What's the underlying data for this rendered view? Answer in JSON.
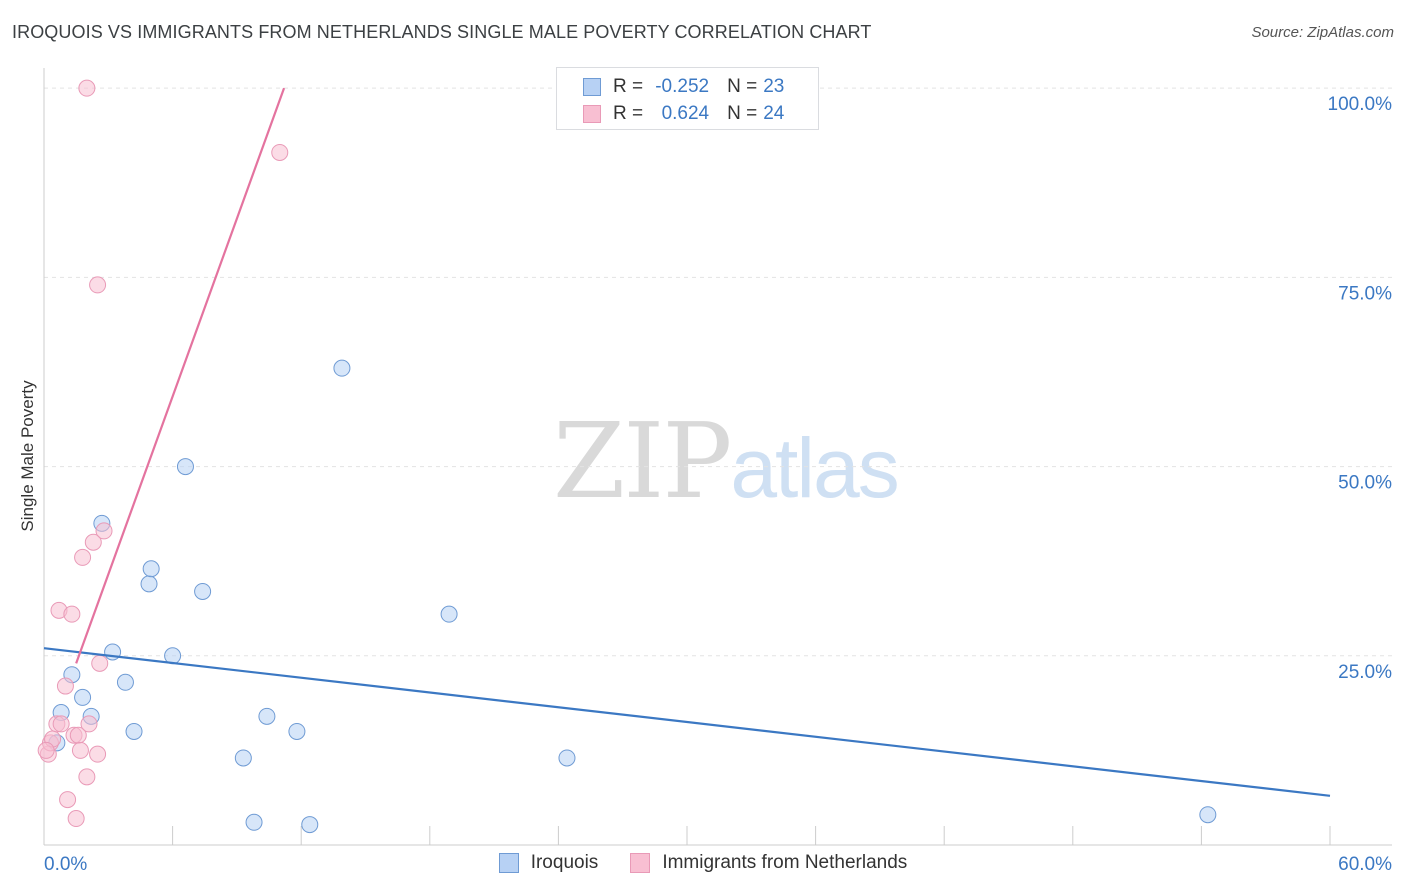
{
  "title": "IROQUOIS VS IMMIGRANTS FROM NETHERLANDS SINGLE MALE POVERTY CORRELATION CHART",
  "source": "Source: ZipAtlas.com",
  "watermark": {
    "zip": "ZIP",
    "atlas": "atlas"
  },
  "colors": {
    "blue": "#3b78c3",
    "blue_fill": "#b7d1f4",
    "pink": "#e4739f",
    "pink_fill": "#f8bfd2",
    "grid": "#e3e3e3"
  },
  "legend": {
    "rows": [
      {
        "r_label": "R =",
        "r_value": "-0.252",
        "n_label": "N =",
        "n_value": "23"
      },
      {
        "r_label": "R =",
        "r_value": "0.624",
        "n_label": "N =",
        "n_value": "24"
      }
    ]
  },
  "bottom_legend": [
    "Iroquois",
    "Immigrants from Netherlands"
  ],
  "chart_data": {
    "type": "scatter",
    "title": "IROQUOIS VS IMMIGRANTS FROM NETHERLANDS SINGLE MALE POVERTY CORRELATION CHART",
    "xlabel": "",
    "ylabel": "Single Male Poverty",
    "xlim": [
      0,
      60
    ],
    "ylim": [
      0,
      102
    ],
    "x_tick_labels": {
      "min": "0.0%",
      "max": "60.0%"
    },
    "y_ticks": [
      {
        "value": 25,
        "label": "25.0%"
      },
      {
        "value": 50,
        "label": "50.0%"
      },
      {
        "value": 75,
        "label": "75.0%"
      },
      {
        "value": 100,
        "label": "100.0%"
      }
    ],
    "series": [
      {
        "name": "Iroquois",
        "color": "#3b78c3",
        "points": [
          [
            0.6,
            13.5
          ],
          [
            0.8,
            17.5
          ],
          [
            1.3,
            22.5
          ],
          [
            1.8,
            19.5
          ],
          [
            2.2,
            17.0
          ],
          [
            2.7,
            42.5
          ],
          [
            3.2,
            25.5
          ],
          [
            3.8,
            21.5
          ],
          [
            4.2,
            15.0
          ],
          [
            4.9,
            34.5
          ],
          [
            5.0,
            36.5
          ],
          [
            6.0,
            25.0
          ],
          [
            6.6,
            50.0
          ],
          [
            7.4,
            33.5
          ],
          [
            9.3,
            11.5
          ],
          [
            9.8,
            3.0
          ],
          [
            10.4,
            17.0
          ],
          [
            11.8,
            15.0
          ],
          [
            12.4,
            2.7
          ],
          [
            13.9,
            63.0
          ],
          [
            18.9,
            30.5
          ],
          [
            24.4,
            11.5
          ],
          [
            54.3,
            4.0
          ]
        ],
        "trend": {
          "x": [
            0,
            60
          ],
          "y": [
            26.0,
            6.5
          ]
        }
      },
      {
        "name": "Immigrants from Netherlands",
        "color": "#e4739f",
        "points": [
          [
            0.2,
            12.0
          ],
          [
            0.3,
            13.5
          ],
          [
            0.4,
            14.0
          ],
          [
            0.6,
            16.0
          ],
          [
            0.7,
            31.0
          ],
          [
            0.8,
            16.0
          ],
          [
            1.0,
            21.0
          ],
          [
            1.1,
            6.0
          ],
          [
            1.3,
            30.5
          ],
          [
            1.4,
            14.5
          ],
          [
            1.5,
            3.5
          ],
          [
            1.6,
            14.5
          ],
          [
            1.7,
            12.5
          ],
          [
            1.8,
            38.0
          ],
          [
            2.0,
            100.0
          ],
          [
            2.0,
            9.0
          ],
          [
            2.1,
            16.0
          ],
          [
            2.3,
            40.0
          ],
          [
            2.5,
            74.0
          ],
          [
            2.5,
            12.0
          ],
          [
            2.6,
            24.0
          ],
          [
            2.8,
            41.5
          ],
          [
            11.0,
            91.5
          ],
          [
            0.1,
            12.5
          ]
        ],
        "trend": {
          "x": [
            1.5,
            11.2
          ],
          "y": [
            24.0,
            100.0
          ]
        }
      }
    ]
  }
}
